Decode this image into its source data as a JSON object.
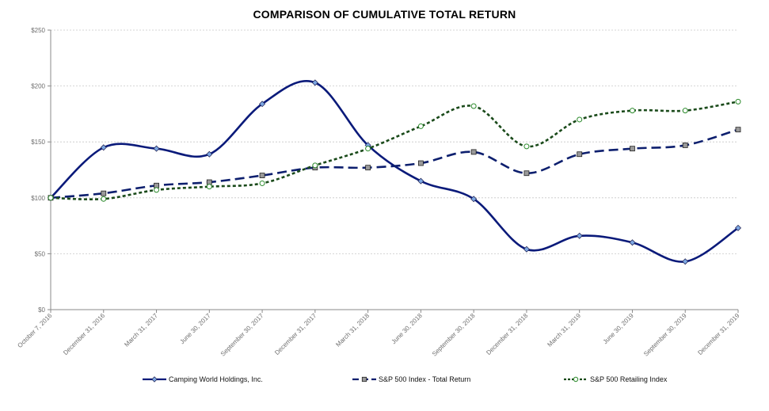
{
  "chart_data": {
    "type": "line",
    "title": "COMPARISON OF CUMULATIVE TOTAL RETURN",
    "xlabel": "",
    "ylabel": "",
    "ylim": [
      0,
      250
    ],
    "y_ticks": [
      "$0",
      "$50",
      "$100",
      "$150",
      "$200",
      "$250"
    ],
    "y_tick_values": [
      0,
      50,
      100,
      150,
      200,
      250
    ],
    "categories": [
      "October 7, 2016",
      "December 31, 2016",
      "March 31, 2017",
      "June 30, 2017",
      "September 30, 2017",
      "December 31, 2017",
      "March 31, 2018",
      "June 30, 2018",
      "September 30, 2018",
      "December 31, 2018",
      "March 31, 2019",
      "June 30, 2019",
      "September 30, 2019",
      "December 31, 2019"
    ],
    "grid": true,
    "legend_position": "bottom",
    "series": [
      {
        "name": "Camping World Holdings, Inc.",
        "values": [
          100,
          145,
          144,
          139,
          184,
          203,
          147,
          115,
          99,
          54,
          66,
          60,
          43,
          73
        ],
        "color": "#0a1a7a",
        "marker_fill": "#7da7e3",
        "line_style": "solid",
        "marker": "diamond"
      },
      {
        "name": "S&P 500 Index - Total Return",
        "values": [
          100,
          104,
          111,
          114,
          120,
          127,
          127,
          131,
          141,
          122,
          139,
          144,
          147,
          161
        ],
        "color": "#0d1f6e",
        "marker_fill": "#9a9a9a",
        "line_style": "dash",
        "marker": "square"
      },
      {
        "name": "S&P 500 Retailing Index",
        "values": [
          100,
          99,
          107,
          110,
          113,
          129,
          144,
          164,
          182,
          146,
          170,
          178,
          178,
          186
        ],
        "color": "#1a4a1a",
        "marker_fill": "#ffffff",
        "marker_stroke": "#2a8a2a",
        "line_style": "dot",
        "marker": "circle"
      }
    ]
  }
}
